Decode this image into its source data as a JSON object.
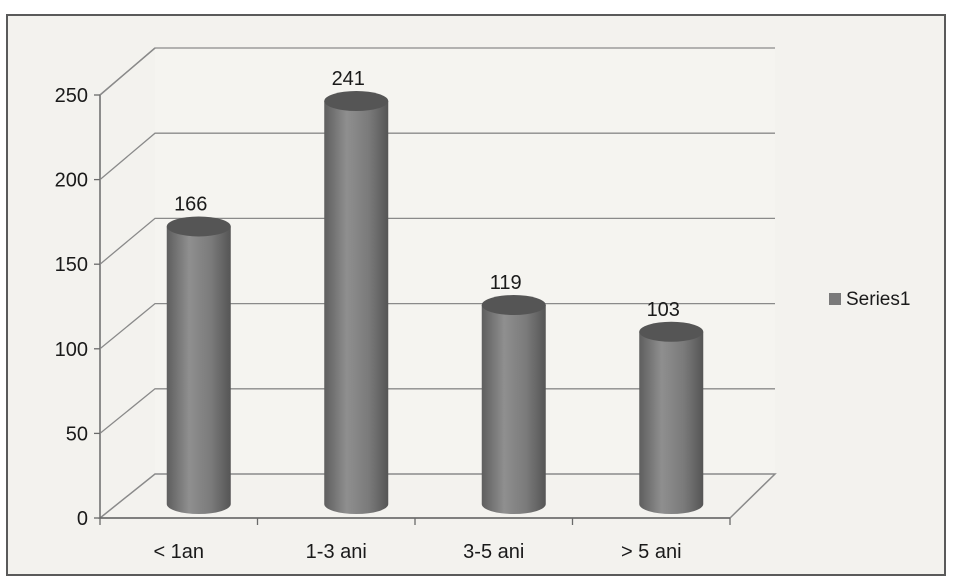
{
  "chart_data": {
    "type": "bar",
    "style": "3d-cylinder",
    "categories": [
      "< 1an",
      "1-3 ani",
      "3-5 ani",
      "> 5 ani"
    ],
    "series": [
      {
        "name": "Series1",
        "values": [
          166,
          241,
          119,
          103
        ]
      }
    ],
    "data_labels": [
      "166",
      "241",
      "119",
      "103"
    ],
    "yticks": [
      "0",
      "50",
      "100",
      "150",
      "200",
      "250"
    ],
    "ylim": [
      0,
      250
    ],
    "grid": true,
    "legend": {
      "position": "right",
      "label": "Series1"
    },
    "colors": {
      "bar": "#7a7a7a",
      "bar_dark": "#555555",
      "bar_light": "#9c9c9c",
      "grid": "#8a8a8a",
      "frame": "#5a5a5a",
      "background": "#f3f2ee"
    }
  }
}
